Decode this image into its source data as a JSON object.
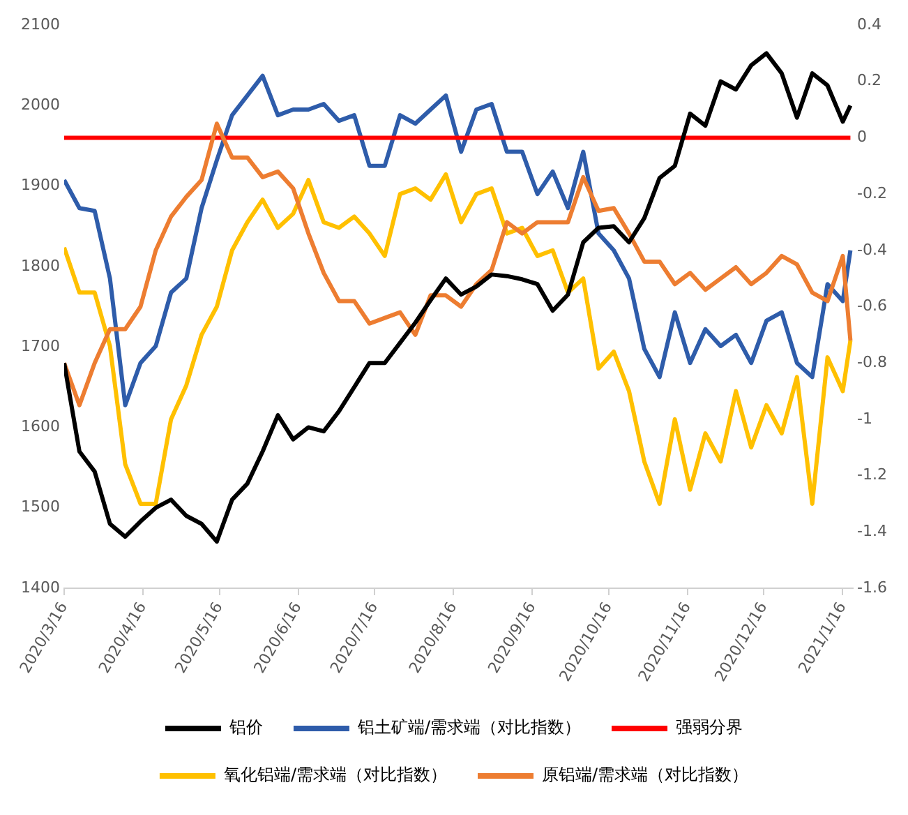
{
  "chart_data": {
    "type": "line",
    "x": [
      "2020-03-16",
      "2020-03-22",
      "2020-03-28",
      "2020-04-03",
      "2020-04-09",
      "2020-04-15",
      "2020-04-21",
      "2020-04-27",
      "2020-05-03",
      "2020-05-09",
      "2020-05-15",
      "2020-05-21",
      "2020-05-27",
      "2020-06-02",
      "2020-06-08",
      "2020-06-14",
      "2020-06-20",
      "2020-06-26",
      "2020-07-02",
      "2020-07-08",
      "2020-07-14",
      "2020-07-20",
      "2020-07-26",
      "2020-08-01",
      "2020-08-07",
      "2020-08-13",
      "2020-08-19",
      "2020-08-25",
      "2020-08-31",
      "2020-09-06",
      "2020-09-12",
      "2020-09-18",
      "2020-09-24",
      "2020-09-30",
      "2020-10-06",
      "2020-10-12",
      "2020-10-18",
      "2020-10-24",
      "2020-10-30",
      "2020-11-05",
      "2020-11-11",
      "2020-11-17",
      "2020-11-23",
      "2020-11-29",
      "2020-12-05",
      "2020-12-11",
      "2020-12-17",
      "2020-12-23",
      "2020-12-29",
      "2021-01-04",
      "2021-01-10",
      "2021-01-16",
      "2021-01-19"
    ],
    "series": [
      {
        "name": "铝价",
        "color": "#000000",
        "values": [
          1680,
          1570,
          1545,
          1480,
          1464,
          1483,
          1500,
          1510,
          1490,
          1480,
          1458,
          1510,
          1530,
          1570,
          1615,
          1585,
          1600,
          1595,
          1620,
          1650,
          1680,
          1680,
          1705,
          1730,
          1758,
          1785,
          1765,
          1775,
          1790,
          1788,
          1784,
          1778,
          1745,
          1765,
          1830,
          1848,
          1850,
          1830,
          1860,
          1910,
          1925,
          1990,
          1975,
          2030,
          2020,
          2050,
          2065,
          2040,
          1985,
          2040,
          2025,
          1980,
          2000
        ]
      },
      {
        "name": "铝土矿端/需求端（对比指数）",
        "color": "#2e5caa",
        "axis": "y2",
        "values": [
          -0.15,
          -0.25,
          -0.26,
          -0.5,
          -0.95,
          -0.8,
          -0.74,
          -0.55,
          -0.5,
          -0.25,
          -0.08,
          0.08,
          0.15,
          0.22,
          0.08,
          0.1,
          0.1,
          0.12,
          0.06,
          0.08,
          -0.1,
          -0.1,
          0.08,
          0.05,
          0.1,
          0.15,
          -0.05,
          0.1,
          0.12,
          -0.05,
          -0.05,
          -0.2,
          -0.12,
          -0.25,
          -0.05,
          -0.34,
          -0.4,
          -0.5,
          -0.75,
          -0.85,
          -0.62,
          -0.8,
          -0.68,
          -0.74,
          -0.7,
          -0.8,
          -0.65,
          -0.62,
          -0.8,
          -0.85,
          -0.52,
          -0.58,
          -0.4
        ]
      },
      {
        "name": "强弱分界",
        "color": "#ff0000",
        "axis": "y2",
        "x": [
          "2020-03-16",
          "2021-01-19"
        ],
        "values": [
          0,
          0
        ]
      },
      {
        "name": "氧化铝端/需求端（对比指数）",
        "color": "#ffc000",
        "axis": "y2",
        "values": [
          -0.39,
          -0.55,
          -0.55,
          -0.74,
          -1.16,
          -1.3,
          -1.3,
          -1,
          -0.88,
          -0.7,
          -0.6,
          -0.4,
          -0.3,
          -0.22,
          -0.32,
          -0.27,
          -0.15,
          -0.3,
          -0.32,
          -0.28,
          -0.34,
          -0.42,
          -0.2,
          -0.18,
          -0.22,
          -0.13,
          -0.3,
          -0.2,
          -0.18,
          -0.34,
          -0.32,
          -0.42,
          -0.4,
          -0.55,
          -0.5,
          -0.82,
          -0.76,
          -0.9,
          -1.15,
          -1.3,
          -1,
          -1.25,
          -1.05,
          -1.15,
          -0.9,
          -1.1,
          -0.95,
          -1.05,
          -0.85,
          -1.3,
          -0.78,
          -0.9,
          -0.72
        ]
      },
      {
        "name": "原铝端/需求端（对比指数）",
        "color": "#ed7d31",
        "axis": "y2",
        "values": [
          -0.8,
          -0.95,
          -0.8,
          -0.68,
          -0.68,
          -0.6,
          -0.4,
          -0.28,
          -0.21,
          -0.15,
          0.05,
          -0.07,
          -0.07,
          -0.14,
          -0.12,
          -0.18,
          -0.34,
          -0.48,
          -0.58,
          -0.58,
          -0.66,
          -0.64,
          -0.62,
          -0.7,
          -0.56,
          -0.56,
          -0.6,
          -0.52,
          -0.47,
          -0.3,
          -0.34,
          -0.3,
          -0.3,
          -0.3,
          -0.14,
          -0.26,
          -0.25,
          -0.34,
          -0.44,
          -0.44,
          -0.52,
          -0.48,
          -0.54,
          -0.5,
          -0.46,
          -0.52,
          -0.48,
          -0.42,
          -0.45,
          -0.55,
          -0.58,
          -0.42,
          -0.72
        ]
      }
    ],
    "xlim": [
      "2020-03-16",
      "2021-01-20"
    ],
    "xticks": [
      {
        "value": "2020-03-16",
        "label": "2020/3/16"
      },
      {
        "value": "2020-04-16",
        "label": "2020/4/16"
      },
      {
        "value": "2020-05-16",
        "label": "2020/5/16"
      },
      {
        "value": "2020-06-16",
        "label": "2020/6/16"
      },
      {
        "value": "2020-07-16",
        "label": "2020/7/16"
      },
      {
        "value": "2020-08-16",
        "label": "2020/8/16"
      },
      {
        "value": "2020-09-16",
        "label": "2020/9/16"
      },
      {
        "value": "2020-10-16",
        "label": "2020/10/16"
      },
      {
        "value": "2020-11-16",
        "label": "2020/11/16"
      },
      {
        "value": "2020-12-16",
        "label": "2020/12/16"
      },
      {
        "value": "2021-01-16",
        "label": "2021/1/16"
      }
    ],
    "ylim": [
      1400,
      2100
    ],
    "yticks": [
      1400,
      1500,
      1600,
      1700,
      1800,
      1900,
      2000,
      2100
    ],
    "y2lim": [
      -1.6,
      0.4
    ],
    "y2ticks": [
      -1.6,
      -1.4,
      -1.2,
      -1,
      -0.8,
      -0.6,
      -0.4,
      -0.2,
      0,
      0.2,
      0.4
    ],
    "grid": false,
    "legend": "bottom"
  }
}
